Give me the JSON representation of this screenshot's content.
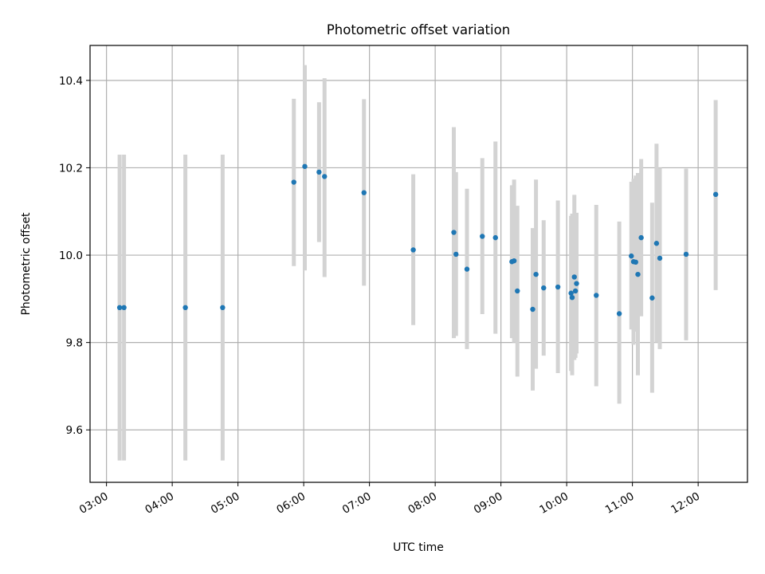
{
  "chart_data": {
    "type": "scatter",
    "title": "Photometric offset variation",
    "xlabel": "UTC time",
    "ylabel": "Photometric offset",
    "xlim": [
      "02:45",
      "12:45"
    ],
    "ylim": [
      9.48,
      10.48
    ],
    "x_ticks": [
      "03:00",
      "04:00",
      "05:00",
      "06:00",
      "07:00",
      "08:00",
      "09:00",
      "10:00",
      "11:00",
      "12:00"
    ],
    "y_ticks": [
      "9.6",
      "9.8",
      "10.0",
      "10.2",
      "10.4"
    ],
    "grid": true,
    "marker_color": "#1f77b4",
    "errorbar_color": "#d3d3d3",
    "points": [
      {
        "x": "03:12",
        "y": 9.88,
        "lo": 9.53,
        "hi": 10.23
      },
      {
        "x": "03:16",
        "y": 9.88,
        "lo": 9.53,
        "hi": 10.23
      },
      {
        "x": "04:12",
        "y": 9.88,
        "lo": 9.53,
        "hi": 10.23
      },
      {
        "x": "04:46",
        "y": 9.88,
        "lo": 9.53,
        "hi": 10.23
      },
      {
        "x": "05:51",
        "y": 10.167,
        "lo": 9.975,
        "hi": 10.358
      },
      {
        "x": "06:01",
        "y": 10.203,
        "lo": 9.965,
        "hi": 10.435
      },
      {
        "x": "06:14",
        "y": 10.19,
        "lo": 10.03,
        "hi": 10.35
      },
      {
        "x": "06:19",
        "y": 10.18,
        "lo": 9.95,
        "hi": 10.405
      },
      {
        "x": "06:55",
        "y": 10.143,
        "lo": 9.93,
        "hi": 10.357
      },
      {
        "x": "07:40",
        "y": 10.012,
        "lo": 9.84,
        "hi": 10.185
      },
      {
        "x": "08:17",
        "y": 10.052,
        "lo": 9.81,
        "hi": 10.293
      },
      {
        "x": "08:19",
        "y": 10.002,
        "lo": 9.815,
        "hi": 10.19
      },
      {
        "x": "08:29",
        "y": 9.968,
        "lo": 9.785,
        "hi": 10.152
      },
      {
        "x": "08:43",
        "y": 10.043,
        "lo": 9.865,
        "hi": 10.222
      },
      {
        "x": "08:55",
        "y": 10.04,
        "lo": 9.82,
        "hi": 10.26
      },
      {
        "x": "09:10",
        "y": 9.985,
        "lo": 9.81,
        "hi": 10.16
      },
      {
        "x": "09:12",
        "y": 9.987,
        "lo": 9.8,
        "hi": 10.173
      },
      {
        "x": "09:15",
        "y": 9.918,
        "lo": 9.722,
        "hi": 10.113
      },
      {
        "x": "09:29",
        "y": 9.876,
        "lo": 9.69,
        "hi": 10.062
      },
      {
        "x": "09:32",
        "y": 9.956,
        "lo": 9.74,
        "hi": 10.173
      },
      {
        "x": "09:39",
        "y": 9.925,
        "lo": 9.77,
        "hi": 10.08
      },
      {
        "x": "09:52",
        "y": 9.927,
        "lo": 9.73,
        "hi": 10.125
      },
      {
        "x": "10:04",
        "y": 9.913,
        "lo": 9.735,
        "hi": 10.09
      },
      {
        "x": "10:05",
        "y": 9.903,
        "lo": 9.725,
        "hi": 10.095
      },
      {
        "x": "10:07",
        "y": 9.95,
        "lo": 9.76,
        "hi": 10.138
      },
      {
        "x": "10:08",
        "y": 9.918,
        "lo": 9.765,
        "hi": 10.072
      },
      {
        "x": "10:09",
        "y": 9.935,
        "lo": 9.775,
        "hi": 10.097
      },
      {
        "x": "10:27",
        "y": 9.908,
        "lo": 9.7,
        "hi": 10.115
      },
      {
        "x": "10:48",
        "y": 9.866,
        "lo": 9.66,
        "hi": 10.077
      },
      {
        "x": "10:59",
        "y": 9.998,
        "lo": 9.83,
        "hi": 10.168
      },
      {
        "x": "11:01",
        "y": 9.985,
        "lo": 9.795,
        "hi": 10.175
      },
      {
        "x": "11:03",
        "y": 9.984,
        "lo": 9.825,
        "hi": 10.182
      },
      {
        "x": "11:05",
        "y": 9.956,
        "lo": 9.725,
        "hi": 10.188
      },
      {
        "x": "11:08",
        "y": 10.04,
        "lo": 9.86,
        "hi": 10.22
      },
      {
        "x": "11:18",
        "y": 9.902,
        "lo": 9.685,
        "hi": 10.12
      },
      {
        "x": "11:22",
        "y": 10.027,
        "lo": 9.8,
        "hi": 10.255
      },
      {
        "x": "11:25",
        "y": 9.993,
        "lo": 9.785,
        "hi": 10.2
      },
      {
        "x": "11:49",
        "y": 10.002,
        "lo": 9.805,
        "hi": 10.198
      },
      {
        "x": "12:16",
        "y": 10.139,
        "lo": 9.92,
        "hi": 10.355
      }
    ]
  }
}
